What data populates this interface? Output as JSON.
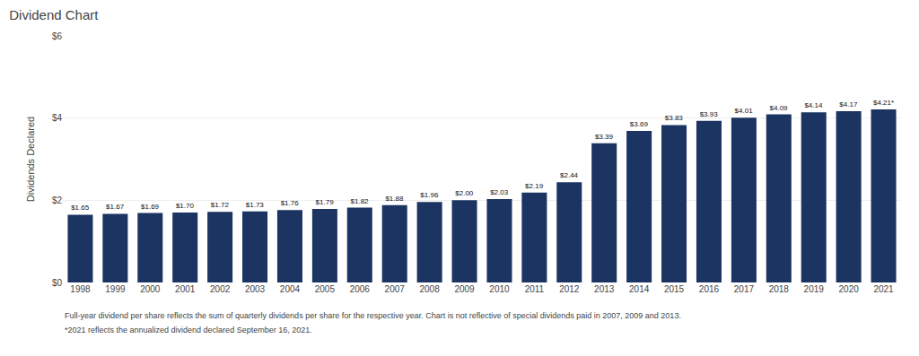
{
  "chart_data": {
    "type": "bar",
    "title": "Dividend Chart",
    "ylabel": "Dividends Declared",
    "categories": [
      "1998",
      "1999",
      "2000",
      "2001",
      "2002",
      "2003",
      "2004",
      "2005",
      "2006",
      "2007",
      "2008",
      "2009",
      "2010",
      "2011",
      "2012",
      "2013",
      "2014",
      "2015",
      "2016",
      "2017",
      "2018",
      "2019",
      "2020",
      "2021"
    ],
    "values": [
      1.65,
      1.67,
      1.69,
      1.7,
      1.72,
      1.73,
      1.76,
      1.79,
      1.82,
      1.88,
      1.96,
      2.0,
      2.03,
      2.19,
      2.44,
      3.39,
      3.69,
      3.83,
      3.93,
      4.01,
      4.09,
      4.14,
      4.17,
      4.21
    ],
    "value_labels": [
      "$1.65",
      "$1.67",
      "$1.69",
      "$1.70",
      "$1.72",
      "$1.73",
      "$1.76",
      "$1.79",
      "$1.82",
      "$1.88",
      "$1.96",
      "$2.00",
      "$2.03",
      "$2.19",
      "$2.44",
      "$3.39",
      "$3.69",
      "$3.83",
      "$3.93",
      "$4.01",
      "$4.09",
      "$4.14",
      "$4.17",
      "$4.21*"
    ],
    "data_labels": true,
    "color": "#1c3461",
    "ylim": [
      0,
      6
    ],
    "yticks": [
      {
        "value": 0,
        "label": "$0"
      },
      {
        "value": 2,
        "label": "$2"
      },
      {
        "value": 4,
        "label": "$4"
      },
      {
        "value": 6,
        "label": "$6"
      }
    ],
    "grid": true,
    "annotations": [
      "Full-year dividend per share reflects the sum of quarterly dividends per share for the respective year. Chart is not reflective of special dividends paid in 2007, 2009 and 2013.",
      "*2021 reflects the annualized dividend declared September 16, 2021."
    ]
  }
}
